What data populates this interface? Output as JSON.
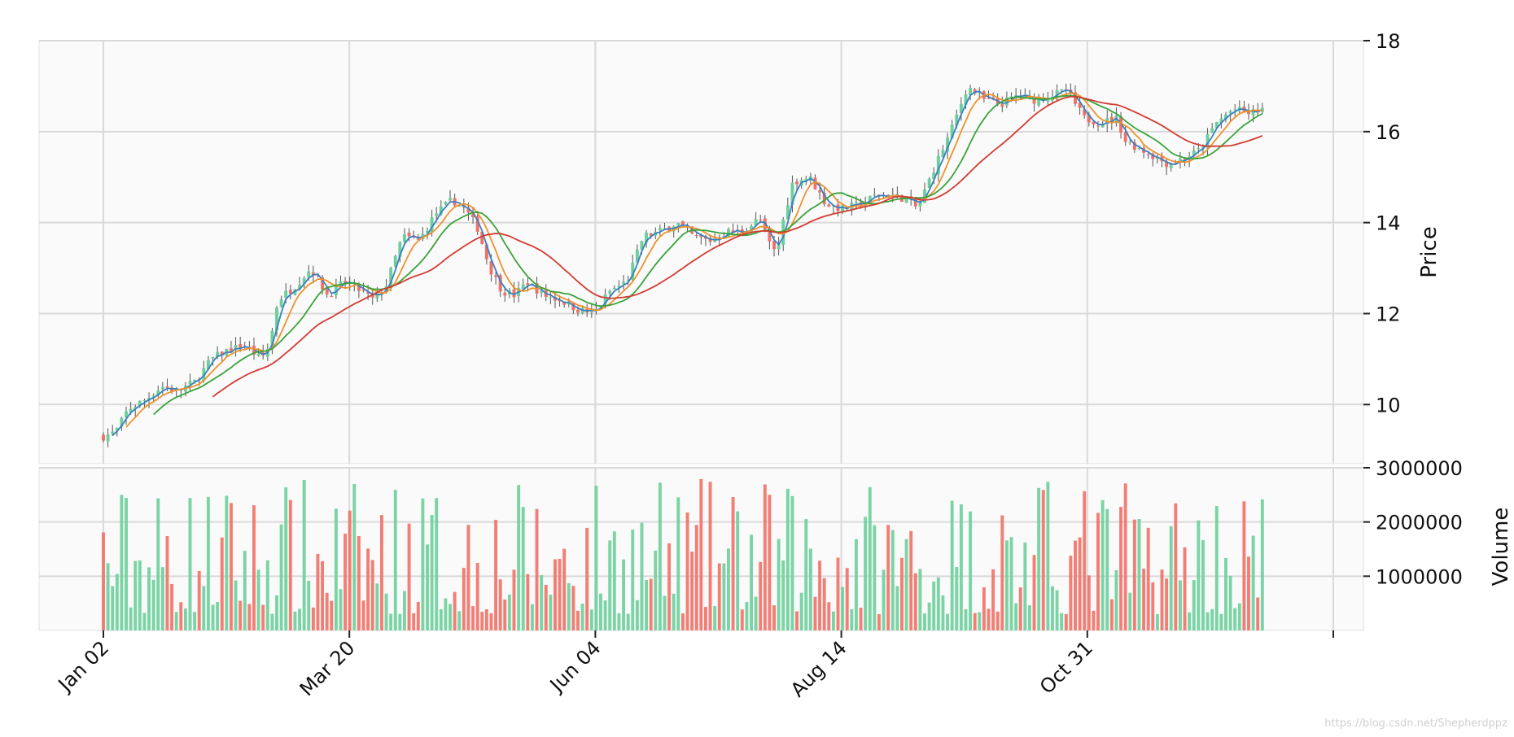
{
  "chart_data": {
    "type": "candlestick",
    "panels": [
      {
        "name": "price",
        "ylabel": "Price",
        "ylim": [
          8.7,
          18.0
        ],
        "yticks": [
          "10",
          "12",
          "14",
          "16",
          "18"
        ],
        "ytick_values": [
          10,
          12,
          14,
          16,
          18
        ]
      },
      {
        "name": "volume",
        "ylabel": "Volume",
        "ylim": [
          0,
          3000000
        ],
        "yticks": [
          "1000000",
          "2000000",
          "3000000"
        ],
        "ytick_values": [
          1000000,
          2000000,
          3000000
        ]
      }
    ],
    "x_ticks": [
      {
        "label": "Jan 02",
        "index": 0
      },
      {
        "label": "Mar 20",
        "index": 52
      },
      {
        "label": "Jun 04",
        "index": 104
      },
      {
        "label": "Aug 14",
        "index": 156
      },
      {
        "label": "Oct 31",
        "index": 208
      },
      {
        "label": "",
        "index": 260
      }
    ],
    "n_sessions": 255,
    "anchors": [
      [
        0,
        9.3
      ],
      [
        3,
        9.4
      ],
      [
        6,
        9.9
      ],
      [
        10,
        10.1
      ],
      [
        14,
        10.4
      ],
      [
        18,
        10.3
      ],
      [
        22,
        10.5
      ],
      [
        26,
        11.0
      ],
      [
        30,
        11.2
      ],
      [
        34,
        11.3
      ],
      [
        38,
        11.0
      ],
      [
        40,
        11.3
      ],
      [
        42,
        12.3
      ],
      [
        46,
        12.6
      ],
      [
        50,
        13.0
      ],
      [
        54,
        12.4
      ],
      [
        58,
        12.7
      ],
      [
        62,
        12.5
      ],
      [
        65,
        12.3
      ],
      [
        68,
        12.6
      ],
      [
        72,
        13.7
      ],
      [
        76,
        13.6
      ],
      [
        80,
        14.2
      ],
      [
        84,
        14.5
      ],
      [
        87,
        14.3
      ],
      [
        90,
        13.9
      ],
      [
        93,
        13.0
      ],
      [
        96,
        12.5
      ],
      [
        99,
        12.4
      ],
      [
        102,
        12.7
      ],
      [
        106,
        12.4
      ],
      [
        110,
        12.3
      ],
      [
        114,
        12.1
      ],
      [
        118,
        12.0
      ],
      [
        122,
        12.5
      ],
      [
        126,
        12.7
      ],
      [
        130,
        13.7
      ],
      [
        134,
        13.8
      ],
      [
        138,
        14.0
      ],
      [
        142,
        13.7
      ],
      [
        146,
        13.6
      ],
      [
        150,
        13.8
      ],
      [
        154,
        13.8
      ],
      [
        158,
        14.1
      ],
      [
        160,
        13.6
      ],
      [
        162,
        13.3
      ],
      [
        164,
        14.2
      ],
      [
        166,
        14.9
      ],
      [
        170,
        15.0
      ],
      [
        174,
        14.4
      ],
      [
        178,
        14.3
      ],
      [
        182,
        14.4
      ],
      [
        186,
        14.6
      ],
      [
        190,
        14.6
      ],
      [
        194,
        14.5
      ],
      [
        196,
        14.3
      ],
      [
        200,
        15.2
      ],
      [
        204,
        16.0
      ],
      [
        206,
        16.5
      ],
      [
        208,
        17.0
      ],
      [
        212,
        16.7
      ],
      [
        216,
        16.6
      ],
      [
        220,
        16.8
      ],
      [
        224,
        16.7
      ],
      [
        228,
        16.8
      ],
      [
        232,
        16.9
      ],
      [
        236,
        16.3
      ],
      [
        240,
        16.2
      ],
      [
        244,
        16.3
      ],
      [
        246,
        15.8
      ],
      [
        250,
        15.6
      ],
      [
        254,
        15.4
      ],
      [
        256,
        15.3
      ],
      [
        260,
        15.4
      ],
      [
        264,
        15.6
      ],
      [
        268,
        16.2
      ],
      [
        272,
        16.5
      ],
      [
        276,
        16.4
      ],
      [
        279,
        16.5
      ]
    ],
    "moving_averages": [
      {
        "window": 3,
        "color": "#3a7fbf"
      },
      {
        "window": 6,
        "color": "#f0912a"
      },
      {
        "window": 12,
        "color": "#3aa33a"
      },
      {
        "window": 25,
        "color": "#d23c32"
      }
    ],
    "volume_range": [
      300000,
      2800000
    ],
    "up_color": "#6dcf9b",
    "down_color": "#f07167",
    "grid": true,
    "background": "#fafafa"
  },
  "watermark": "https://blog.csdn.net/Shepherdppz"
}
